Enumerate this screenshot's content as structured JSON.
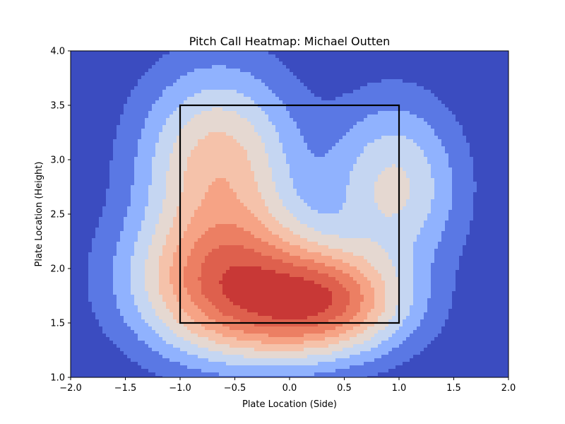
{
  "chart_data": {
    "type": "heatmap",
    "subtype": "filled-contour",
    "title": "Pitch Call Heatmap: Michael Outten",
    "xlabel": "Plate Location (Side)",
    "ylabel": "Plate Location (Height)",
    "xlim": [
      -2.0,
      2.0
    ],
    "ylim": [
      1.0,
      4.0
    ],
    "xticks": [
      -2.0,
      -1.5,
      -1.0,
      -0.5,
      0.0,
      0.5,
      1.0,
      1.5,
      2.0
    ],
    "xtick_labels": [
      "−2.0",
      "−1.5",
      "−1.0",
      "−0.5",
      "0.0",
      "0.5",
      "1.0",
      "1.5",
      "2.0"
    ],
    "yticks": [
      1.0,
      1.5,
      2.0,
      2.5,
      3.0,
      3.5,
      4.0
    ],
    "ytick_labels": [
      "1.0",
      "1.5",
      "2.0",
      "2.5",
      "3.0",
      "3.5",
      "4.0"
    ],
    "grid": false,
    "colormap": "coolwarm",
    "levels": 8,
    "level_colors": [
      "#3b4cc0",
      "#5a78e4",
      "#90b2fe",
      "#c5d6f2",
      "#e5d8d1",
      "#f5c2aa",
      "#f6a385",
      "#ec7f63",
      "#de604d",
      "#c83836"
    ],
    "density_components": [
      {
        "x": -0.55,
        "y": 1.9,
        "sx": 0.55,
        "sy": 0.42,
        "weight": 1.0
      },
      {
        "x": 0.35,
        "y": 1.75,
        "sx": 0.45,
        "sy": 0.3,
        "weight": 0.8
      },
      {
        "x": -0.65,
        "y": 2.95,
        "sx": 0.45,
        "sy": 0.55,
        "weight": 0.65
      },
      {
        "x": 0.95,
        "y": 2.75,
        "sx": 0.38,
        "sy": 0.5,
        "weight": 0.45
      },
      {
        "x": 0.0,
        "y": 1.5,
        "sx": 0.6,
        "sy": 0.28,
        "weight": 0.35
      }
    ],
    "strike_zone": {
      "x": [
        -1.0,
        1.0
      ],
      "y": [
        1.5,
        3.5
      ],
      "color": "#000000"
    }
  }
}
